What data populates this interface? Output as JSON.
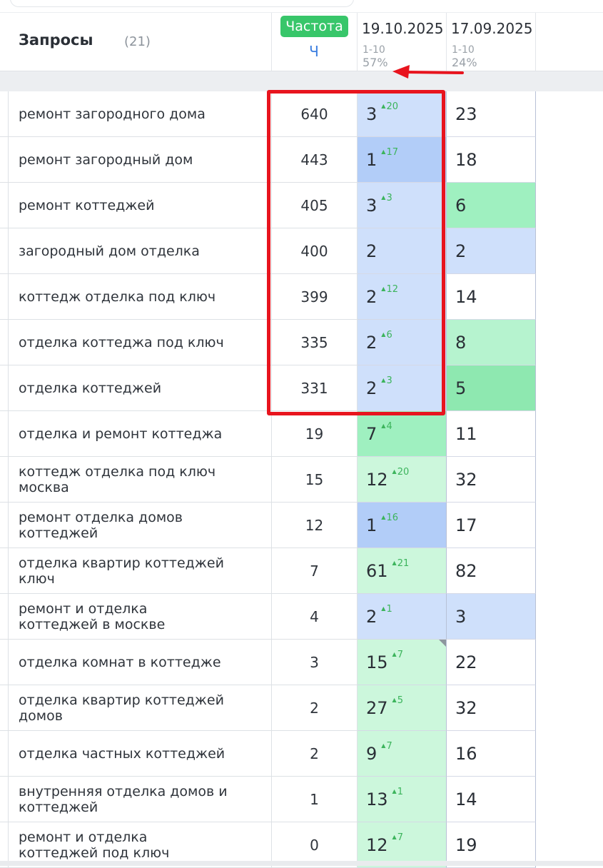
{
  "header": {
    "title": "Запросы",
    "count": "(21)",
    "frequency_label": "Частота",
    "frequency_sub": "Ч",
    "dates": [
      {
        "date": "19.10.2025",
        "range": "1-10",
        "percent": "57%"
      },
      {
        "date": "17.09.2025",
        "range": "1-10",
        "percent": "24%"
      }
    ]
  },
  "colors": {
    "badge_green": "#38c66a",
    "highlight_red": "#e8141e",
    "delta_green": "#3cb45c",
    "link_blue": "#3d7fe0"
  },
  "rows": [
    {
      "query": "ремонт загородного дома",
      "freq": "640",
      "pos1": "3",
      "delta1": "20",
      "pos2": "23"
    },
    {
      "query": "ремонт загородный дом",
      "freq": "443",
      "pos1": "1",
      "delta1": "17",
      "pos2": "18"
    },
    {
      "query": "ремонт коттеджей",
      "freq": "405",
      "pos1": "3",
      "delta1": "3",
      "pos2": "6"
    },
    {
      "query": "загородный дом отделка",
      "freq": "400",
      "pos1": "2",
      "delta1": "",
      "pos2": "2"
    },
    {
      "query": "коттедж отделка под ключ",
      "freq": "399",
      "pos1": "2",
      "delta1": "12",
      "pos2": "14"
    },
    {
      "query": "отделка коттеджа под ключ",
      "freq": "335",
      "pos1": "2",
      "delta1": "6",
      "pos2": "8"
    },
    {
      "query": "отделка коттеджей",
      "freq": "331",
      "pos1": "2",
      "delta1": "3",
      "pos2": "5"
    },
    {
      "query": "отделка и ремонт коттеджа",
      "freq": "19",
      "pos1": "7",
      "delta1": "4",
      "pos2": "11"
    },
    {
      "query": "коттедж отделка под ключ москва",
      "freq": "15",
      "pos1": "12",
      "delta1": "20",
      "pos2": "32"
    },
    {
      "query": "ремонт отделка домов коттеджей",
      "freq": "12",
      "pos1": "1",
      "delta1": "16",
      "pos2": "17"
    },
    {
      "query": "отделка квартир коттеджей ключ",
      "freq": "7",
      "pos1": "61",
      "delta1": "21",
      "pos2": "82"
    },
    {
      "query": "ремонт и отделка коттеджей в москве",
      "freq": "4",
      "pos1": "2",
      "delta1": "1",
      "pos2": "3"
    },
    {
      "query": "отделка комнат в коттедже",
      "freq": "3",
      "pos1": "15",
      "delta1": "7",
      "pos2": "22"
    },
    {
      "query": "отделка квартир коттеджей домов",
      "freq": "2",
      "pos1": "27",
      "delta1": "5",
      "pos2": "32"
    },
    {
      "query": "отделка частных коттеджей",
      "freq": "2",
      "pos1": "9",
      "delta1": "7",
      "pos2": "16"
    },
    {
      "query": "внутренняя отделка домов и коттеджей",
      "freq": "1",
      "pos1": "13",
      "delta1": "1",
      "pos2": "14"
    },
    {
      "query": "ремонт и отделка коттеджей под ключ",
      "freq": "0",
      "pos1": "12",
      "delta1": "7",
      "pos2": "19"
    }
  ]
}
